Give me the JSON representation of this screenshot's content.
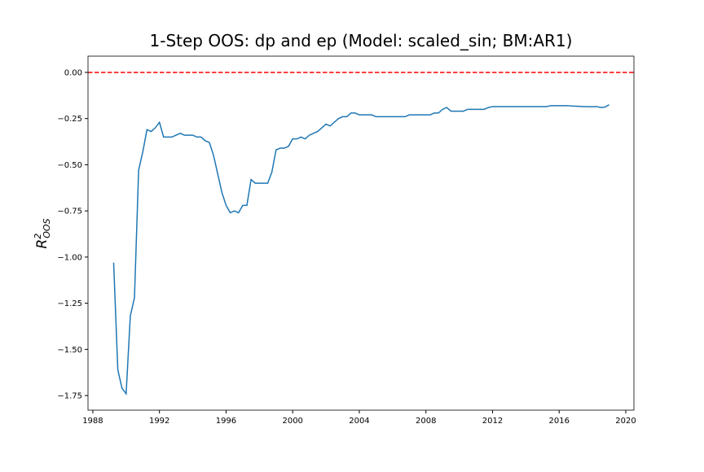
{
  "chart_data": {
    "type": "line",
    "title": "1-Step OOS: dp and ep (Model: scaled_sin; BM:AR1)",
    "ylabel": {
      "base": "R",
      "sup": "2",
      "sub": "OOS"
    },
    "x": [
      1989.25,
      1989.5,
      1989.75,
      1990.0,
      1990.25,
      1990.5,
      1990.75,
      1991.0,
      1991.25,
      1991.5,
      1991.75,
      1992.0,
      1992.25,
      1992.5,
      1992.75,
      1993.0,
      1993.25,
      1993.5,
      1993.75,
      1994.0,
      1994.25,
      1994.5,
      1994.75,
      1995.0,
      1995.25,
      1995.5,
      1995.75,
      1996.0,
      1996.25,
      1996.5,
      1996.75,
      1997.0,
      1997.25,
      1997.5,
      1997.75,
      1998.0,
      1998.25,
      1998.5,
      1998.75,
      1999.0,
      1999.25,
      1999.5,
      1999.75,
      2000.0,
      2000.25,
      2000.5,
      2000.75,
      2001.0,
      2001.25,
      2001.5,
      2001.75,
      2002.0,
      2002.25,
      2002.5,
      2002.75,
      2003.0,
      2003.25,
      2003.5,
      2003.75,
      2004.0,
      2004.25,
      2004.5,
      2004.75,
      2005.0,
      2005.25,
      2005.5,
      2005.75,
      2006.0,
      2006.25,
      2006.5,
      2006.75,
      2007.0,
      2007.25,
      2007.5,
      2007.75,
      2008.0,
      2008.25,
      2008.5,
      2008.75,
      2009.0,
      2009.25,
      2009.5,
      2009.75,
      2010.0,
      2010.25,
      2010.5,
      2010.75,
      2011.0,
      2011.25,
      2011.5,
      2011.75,
      2012.0,
      2012.25,
      2012.5,
      2012.75,
      2013.0,
      2013.25,
      2013.5,
      2013.75,
      2014.0,
      2014.25,
      2014.5,
      2014.75,
      2015.0,
      2015.25,
      2015.5,
      2015.75,
      2016.0,
      2016.25,
      2016.5,
      2016.75,
      2017.0,
      2017.25,
      2017.5,
      2017.75,
      2018.0,
      2018.25,
      2018.5,
      2018.75,
      2019.0
    ],
    "series": [
      {
        "name": "R2 OOS",
        "color": "#1f77b4",
        "values": [
          -1.03,
          -1.61,
          -1.71,
          -1.74,
          -1.32,
          -1.22,
          -0.53,
          -0.43,
          -0.31,
          -0.32,
          -0.3,
          -0.27,
          -0.35,
          -0.35,
          -0.35,
          -0.34,
          -0.33,
          -0.34,
          -0.34,
          -0.34,
          -0.35,
          -0.35,
          -0.37,
          -0.38,
          -0.45,
          -0.55,
          -0.65,
          -0.72,
          -0.76,
          -0.75,
          -0.76,
          -0.72,
          -0.72,
          -0.58,
          -0.6,
          -0.6,
          -0.6,
          -0.6,
          -0.54,
          -0.42,
          -0.41,
          -0.41,
          -0.4,
          -0.36,
          -0.36,
          -0.35,
          -0.36,
          -0.34,
          -0.33,
          -0.32,
          -0.3,
          -0.28,
          -0.29,
          -0.27,
          -0.25,
          -0.24,
          -0.24,
          -0.22,
          -0.22,
          -0.23,
          -0.23,
          -0.23,
          -0.23,
          -0.24,
          -0.24,
          -0.24,
          -0.24,
          -0.24,
          -0.24,
          -0.24,
          -0.24,
          -0.23,
          -0.23,
          -0.23,
          -0.23,
          -0.23,
          -0.23,
          -0.22,
          -0.22,
          -0.2,
          -0.19,
          -0.21,
          -0.21,
          -0.21,
          -0.21,
          -0.2,
          -0.2,
          -0.2,
          -0.2,
          -0.2,
          -0.19,
          -0.185,
          -0.185,
          -0.185,
          -0.185,
          -0.185,
          -0.185,
          -0.185,
          -0.185,
          -0.185,
          -0.185,
          -0.185,
          -0.185,
          -0.185,
          -0.185,
          -0.18,
          -0.18,
          -0.18,
          -0.18,
          -0.18,
          -0.182,
          -0.183,
          -0.184,
          -0.185,
          -0.186,
          -0.186,
          -0.185,
          -0.19,
          -0.188,
          -0.175
        ]
      }
    ],
    "hline": {
      "value": 0,
      "color": "#ff0000",
      "dashed": true
    },
    "xlim": [
      1987.71,
      2020.49
    ],
    "ylim": [
      -1.829,
      0.088
    ],
    "xticks": [
      1988,
      1992,
      1996,
      2000,
      2004,
      2008,
      2012,
      2016,
      2020
    ],
    "yticks": [
      {
        "value": 0,
        "label": "0.00"
      },
      {
        "value": -0.25,
        "label": "−0.25"
      },
      {
        "value": -0.5,
        "label": "−0.50"
      },
      {
        "value": -0.75,
        "label": "−0.75"
      },
      {
        "value": -1,
        "label": "−1.00"
      },
      {
        "value": -1.25,
        "label": "−1.25"
      },
      {
        "value": -1.5,
        "label": "−1.50"
      },
      {
        "value": -1.75,
        "label": "−1.75"
      }
    ],
    "grid": false
  }
}
